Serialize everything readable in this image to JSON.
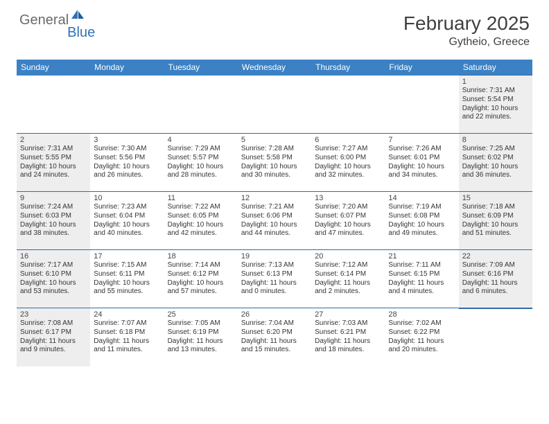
{
  "brand": {
    "part1": "General",
    "part2": "Blue"
  },
  "title": "February 2025",
  "location": "Gytheio, Greece",
  "colors": {
    "header_bg": "#3b81c3",
    "header_text": "#ffffff",
    "border": "#2e6ba8",
    "shaded_bg": "#eeeeee",
    "body_text": "#333333",
    "title_text": "#404040",
    "logo_gray": "#6a6a6a",
    "logo_blue": "#2f72b6"
  },
  "fonts": {
    "title_size_pt": 21,
    "location_size_pt": 12,
    "weekday_size_pt": 9,
    "daynum_size_pt": 8,
    "body_size_pt": 7.5
  },
  "weekdays": [
    "Sunday",
    "Monday",
    "Tuesday",
    "Wednesday",
    "Thursday",
    "Friday",
    "Saturday"
  ],
  "calendar": {
    "type": "table",
    "columns": 7,
    "rows": [
      [
        {
          "blank": true
        },
        {
          "blank": true
        },
        {
          "blank": true
        },
        {
          "blank": true
        },
        {
          "blank": true
        },
        {
          "blank": true
        },
        {
          "day": 1,
          "shaded": true,
          "sunrise": "7:31 AM",
          "sunset": "5:54 PM",
          "daylight": "10 hours and 22 minutes."
        }
      ],
      [
        {
          "day": 2,
          "shaded": true,
          "sunrise": "7:31 AM",
          "sunset": "5:55 PM",
          "daylight": "10 hours and 24 minutes."
        },
        {
          "day": 3,
          "shaded": false,
          "sunrise": "7:30 AM",
          "sunset": "5:56 PM",
          "daylight": "10 hours and 26 minutes."
        },
        {
          "day": 4,
          "shaded": false,
          "sunrise": "7:29 AM",
          "sunset": "5:57 PM",
          "daylight": "10 hours and 28 minutes."
        },
        {
          "day": 5,
          "shaded": false,
          "sunrise": "7:28 AM",
          "sunset": "5:58 PM",
          "daylight": "10 hours and 30 minutes."
        },
        {
          "day": 6,
          "shaded": false,
          "sunrise": "7:27 AM",
          "sunset": "6:00 PM",
          "daylight": "10 hours and 32 minutes."
        },
        {
          "day": 7,
          "shaded": false,
          "sunrise": "7:26 AM",
          "sunset": "6:01 PM",
          "daylight": "10 hours and 34 minutes."
        },
        {
          "day": 8,
          "shaded": true,
          "sunrise": "7:25 AM",
          "sunset": "6:02 PM",
          "daylight": "10 hours and 36 minutes."
        }
      ],
      [
        {
          "day": 9,
          "shaded": true,
          "sunrise": "7:24 AM",
          "sunset": "6:03 PM",
          "daylight": "10 hours and 38 minutes."
        },
        {
          "day": 10,
          "shaded": false,
          "sunrise": "7:23 AM",
          "sunset": "6:04 PM",
          "daylight": "10 hours and 40 minutes."
        },
        {
          "day": 11,
          "shaded": false,
          "sunrise": "7:22 AM",
          "sunset": "6:05 PM",
          "daylight": "10 hours and 42 minutes."
        },
        {
          "day": 12,
          "shaded": false,
          "sunrise": "7:21 AM",
          "sunset": "6:06 PM",
          "daylight": "10 hours and 44 minutes."
        },
        {
          "day": 13,
          "shaded": false,
          "sunrise": "7:20 AM",
          "sunset": "6:07 PM",
          "daylight": "10 hours and 47 minutes."
        },
        {
          "day": 14,
          "shaded": false,
          "sunrise": "7:19 AM",
          "sunset": "6:08 PM",
          "daylight": "10 hours and 49 minutes."
        },
        {
          "day": 15,
          "shaded": true,
          "sunrise": "7:18 AM",
          "sunset": "6:09 PM",
          "daylight": "10 hours and 51 minutes."
        }
      ],
      [
        {
          "day": 16,
          "shaded": true,
          "sunrise": "7:17 AM",
          "sunset": "6:10 PM",
          "daylight": "10 hours and 53 minutes."
        },
        {
          "day": 17,
          "shaded": false,
          "sunrise": "7:15 AM",
          "sunset": "6:11 PM",
          "daylight": "10 hours and 55 minutes."
        },
        {
          "day": 18,
          "shaded": false,
          "sunrise": "7:14 AM",
          "sunset": "6:12 PM",
          "daylight": "10 hours and 57 minutes."
        },
        {
          "day": 19,
          "shaded": false,
          "sunrise": "7:13 AM",
          "sunset": "6:13 PM",
          "daylight": "11 hours and 0 minutes."
        },
        {
          "day": 20,
          "shaded": false,
          "sunrise": "7:12 AM",
          "sunset": "6:14 PM",
          "daylight": "11 hours and 2 minutes."
        },
        {
          "day": 21,
          "shaded": false,
          "sunrise": "7:11 AM",
          "sunset": "6:15 PM",
          "daylight": "11 hours and 4 minutes."
        },
        {
          "day": 22,
          "shaded": true,
          "sunrise": "7:09 AM",
          "sunset": "6:16 PM",
          "daylight": "11 hours and 6 minutes."
        }
      ],
      [
        {
          "day": 23,
          "shaded": true,
          "sunrise": "7:08 AM",
          "sunset": "6:17 PM",
          "daylight": "11 hours and 9 minutes."
        },
        {
          "day": 24,
          "shaded": false,
          "sunrise": "7:07 AM",
          "sunset": "6:18 PM",
          "daylight": "11 hours and 11 minutes."
        },
        {
          "day": 25,
          "shaded": false,
          "sunrise": "7:05 AM",
          "sunset": "6:19 PM",
          "daylight": "11 hours and 13 minutes."
        },
        {
          "day": 26,
          "shaded": false,
          "sunrise": "7:04 AM",
          "sunset": "6:20 PM",
          "daylight": "11 hours and 15 minutes."
        },
        {
          "day": 27,
          "shaded": false,
          "sunrise": "7:03 AM",
          "sunset": "6:21 PM",
          "daylight": "11 hours and 18 minutes."
        },
        {
          "day": 28,
          "shaded": false,
          "sunrise": "7:02 AM",
          "sunset": "6:22 PM",
          "daylight": "11 hours and 20 minutes."
        },
        {
          "blank": true
        }
      ]
    ]
  },
  "labels": {
    "sunrise": "Sunrise: ",
    "sunset": "Sunset: ",
    "daylight": "Daylight: "
  }
}
